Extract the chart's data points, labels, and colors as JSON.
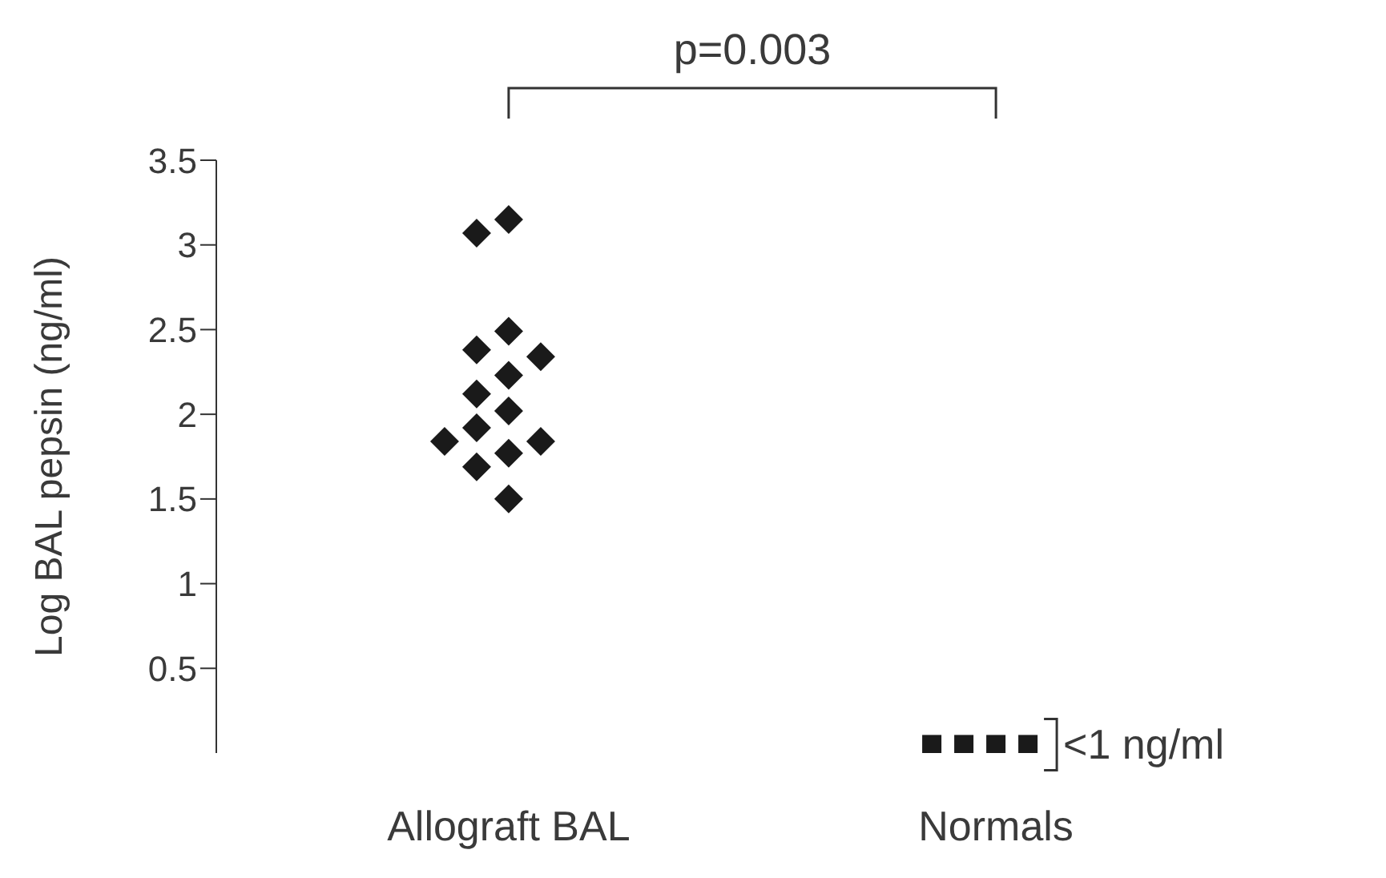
{
  "chart_data": {
    "type": "scatter",
    "ylabel": "Log BAL pepsin (ng/ml)",
    "categories": [
      "Allograft BAL",
      "Normals"
    ],
    "ylim": [
      0,
      3.5
    ],
    "yticks": [
      0.5,
      1,
      1.5,
      2,
      2.5,
      3,
      3.5
    ],
    "series": [
      {
        "color": "#1a1a1a",
        "marker": "diamond",
        "x": [
          "Allograft BAL",
          "Allograft BAL",
          "Allograft BAL",
          "Allograft BAL",
          "Allograft BAL",
          "Allograft BAL",
          "Allograft BAL",
          "Allograft BAL",
          "Allograft BAL",
          "Allograft BAL",
          "Allograft BAL",
          "Allograft BAL",
          "Allograft BAL",
          "Allograft BAL"
        ],
        "values": [
          3.15,
          3.07,
          2.49,
          2.38,
          2.34,
          2.23,
          2.12,
          2.02,
          1.92,
          1.84,
          1.84,
          1.77,
          1.69,
          1.5
        ]
      },
      {
        "color": "#1a1a1a",
        "marker": "square",
        "x": [
          "Normals",
          "Normals",
          "Normals",
          "Normals"
        ],
        "values": [
          0.05,
          0.05,
          0.05,
          0.05
        ]
      }
    ],
    "annotations": [
      "p=0.003",
      {
        "text": "<1 ng/ml",
        "x": "Normals",
        "y": 0.05
      }
    ]
  }
}
